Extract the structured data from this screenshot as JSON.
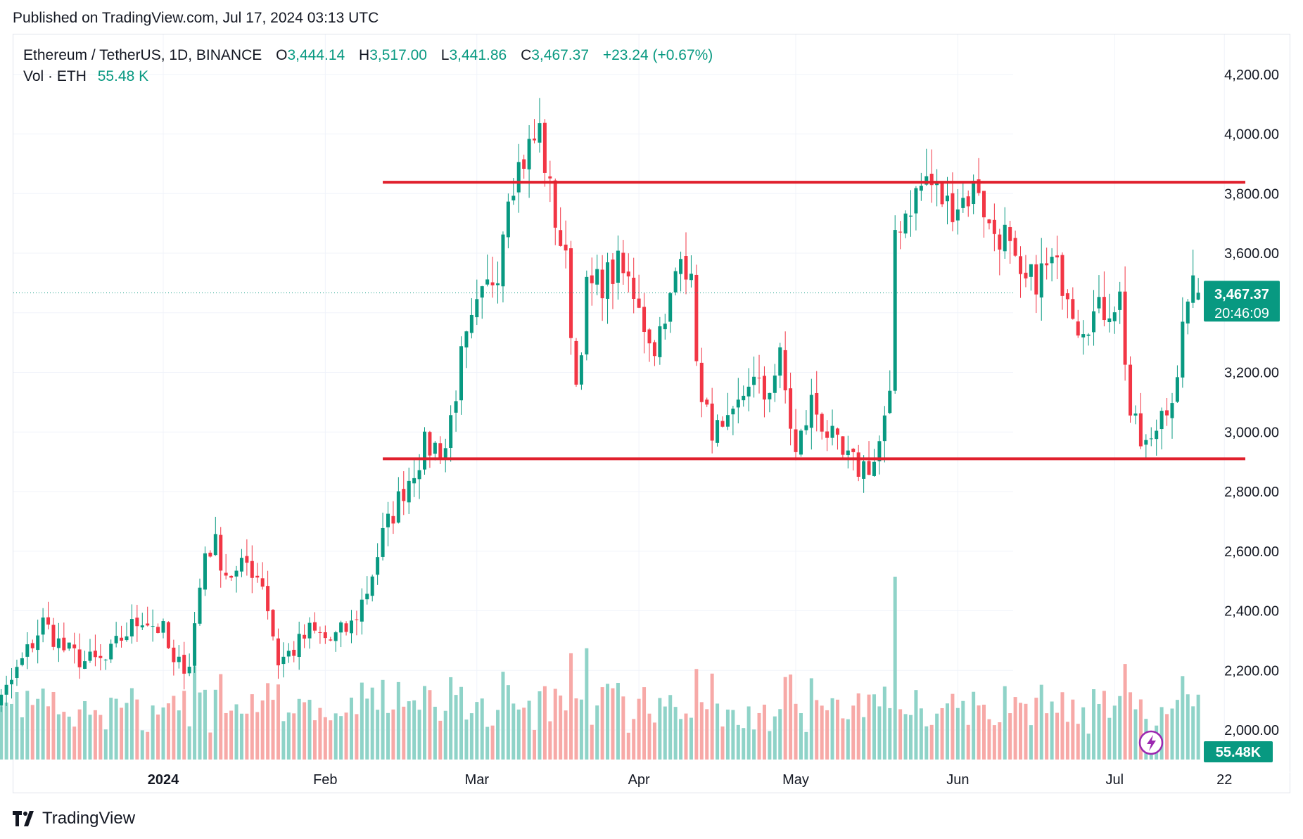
{
  "published": "Published on TradingView.com, Jul 17, 2024 03:13 UTC",
  "legend": {
    "symbol": "Ethereum / TetherUS, 1D, BINANCE",
    "o_label": "O",
    "o": "3,444.14",
    "h_label": "H",
    "h": "3,517.00",
    "l_label": "L",
    "l": "3,441.86",
    "c_label": "C",
    "c": "3,467.37",
    "change": "+23.24 (+0.67%)",
    "vol_label": "Vol · ETH",
    "vol": "55.48 K"
  },
  "brand": "TradingView",
  "colors": {
    "up": "#089981",
    "down": "#f23645",
    "up_vol": "#8fd3c8",
    "down_vol": "#f7a9a7",
    "level_line": "#e0202d"
  },
  "chart_data": {
    "type": "candlestick",
    "title": "Ethereum / TetherUS, 1D, BINANCE",
    "price_ticks": [
      "4,200.00",
      "4,000.00",
      "3,800.00",
      "3,600.00",
      "3,400.00",
      "3,200.00",
      "3,000.00",
      "2,800.00",
      "2,600.00",
      "2,400.00",
      "2,200.00",
      "2,000.00"
    ],
    "price_tick_values": [
      4200,
      4000,
      3800,
      3600,
      3400,
      3200,
      3000,
      2800,
      2600,
      2400,
      2200,
      2000
    ],
    "ylim": [
      1900,
      4280
    ],
    "time_labels": [
      {
        "label": "2024",
        "date": "2024-01-01"
      },
      {
        "label": "Feb",
        "date": "2024-02-01"
      },
      {
        "label": "Mar",
        "date": "2024-03-01"
      },
      {
        "label": "Apr",
        "date": "2024-04-01"
      },
      {
        "label": "May",
        "date": "2024-05-01"
      },
      {
        "label": "Jun",
        "date": "2024-06-01"
      },
      {
        "label": "Jul",
        "date": "2024-07-01"
      },
      {
        "label": "22",
        "date": "2024-07-22"
      }
    ],
    "date_range": [
      "2023-11-24",
      "2024-07-17"
    ],
    "last_price_label": "3,467.37",
    "countdown_label": "20:46:09",
    "last_volume_label": "55.48K",
    "horizontal_lines": [
      {
        "value": 3838,
        "from": "2024-02-12",
        "to": "2024-07-26"
      },
      {
        "value": 2910,
        "from": "2024-02-12",
        "to": "2024-07-26"
      }
    ],
    "anchors": [
      [
        "2023-11-24",
        2060
      ],
      [
        "2023-11-28",
        2080
      ],
      [
        "2023-12-01",
        2100
      ],
      [
        "2023-12-05",
        2230
      ],
      [
        "2023-12-09",
        2360
      ],
      [
        "2023-12-13",
        2270
      ],
      [
        "2023-12-17",
        2230
      ],
      [
        "2023-12-21",
        2230
      ],
      [
        "2023-12-24",
        2310
      ],
      [
        "2023-12-28",
        2380
      ],
      [
        "2024-01-01",
        2330
      ],
      [
        "2024-01-03",
        2210
      ],
      [
        "2024-01-06",
        2230
      ],
      [
        "2024-01-09",
        2600
      ],
      [
        "2024-01-11",
        2620
      ],
      [
        "2024-01-13",
        2530
      ],
      [
        "2024-01-15",
        2520
      ],
      [
        "2024-01-17",
        2560
      ],
      [
        "2024-01-20",
        2500
      ],
      [
        "2024-01-23",
        2230
      ],
      [
        "2024-01-26",
        2270
      ],
      [
        "2024-01-29",
        2330
      ],
      [
        "2024-02-02",
        2300
      ],
      [
        "2024-02-06",
        2350
      ],
      [
        "2024-02-09",
        2470
      ],
      [
        "2024-02-12",
        2650
      ],
      [
        "2024-02-16",
        2810
      ],
      [
        "2024-02-20",
        2950
      ],
      [
        "2024-02-24",
        2950
      ],
      [
        "2024-02-27",
        3240
      ],
      [
        "2024-03-01",
        3400
      ],
      [
        "2024-03-05",
        3560
      ],
      [
        "2024-03-07",
        3830
      ],
      [
        "2024-03-11",
        3950
      ],
      [
        "2024-03-13",
        4010
      ],
      [
        "2024-03-15",
        3800
      ],
      [
        "2024-03-18",
        3560
      ],
      [
        "2024-03-20",
        3160
      ],
      [
        "2024-03-22",
        3470
      ],
      [
        "2024-03-26",
        3520
      ],
      [
        "2024-03-28",
        3550
      ],
      [
        "2024-04-01",
        3450
      ],
      [
        "2024-04-03",
        3290
      ],
      [
        "2024-04-06",
        3340
      ],
      [
        "2024-04-09",
        3640
      ],
      [
        "2024-04-11",
        3480
      ],
      [
        "2024-04-13",
        3080
      ],
      [
        "2024-04-15",
        3020
      ],
      [
        "2024-04-17",
        2980
      ],
      [
        "2024-04-19",
        3030
      ],
      [
        "2024-04-22",
        3180
      ],
      [
        "2024-04-25",
        3120
      ],
      [
        "2024-04-28",
        3240
      ],
      [
        "2024-05-01",
        2920
      ],
      [
        "2024-05-04",
        3100
      ],
      [
        "2024-05-07",
        3000
      ],
      [
        "2024-05-10",
        2910
      ],
      [
        "2024-05-13",
        2880
      ],
      [
        "2024-05-16",
        2900
      ],
      [
        "2024-05-19",
        3090
      ],
      [
        "2024-05-20",
        3680
      ],
      [
        "2024-05-23",
        3770
      ],
      [
        "2024-05-26",
        3850
      ],
      [
        "2024-05-30",
        3760
      ],
      [
        "2024-06-02",
        3780
      ],
      [
        "2024-06-05",
        3830
      ],
      [
        "2024-06-07",
        3680
      ],
      [
        "2024-06-10",
        3660
      ],
      [
        "2024-06-13",
        3480
      ],
      [
        "2024-06-16",
        3520
      ],
      [
        "2024-06-19",
        3560
      ],
      [
        "2024-06-22",
        3490
      ],
      [
        "2024-06-24",
        3370
      ],
      [
        "2024-06-28",
        3400
      ],
      [
        "2024-07-02",
        3450
      ],
      [
        "2024-07-04",
        3060
      ],
      [
        "2024-07-06",
        2960
      ],
      [
        "2024-07-08",
        2950
      ],
      [
        "2024-07-10",
        3080
      ],
      [
        "2024-07-13",
        3150
      ],
      [
        "2024-07-15",
        3480
      ],
      [
        "2024-07-17",
        3467.37
      ]
    ],
    "volume_scale": "relative"
  }
}
